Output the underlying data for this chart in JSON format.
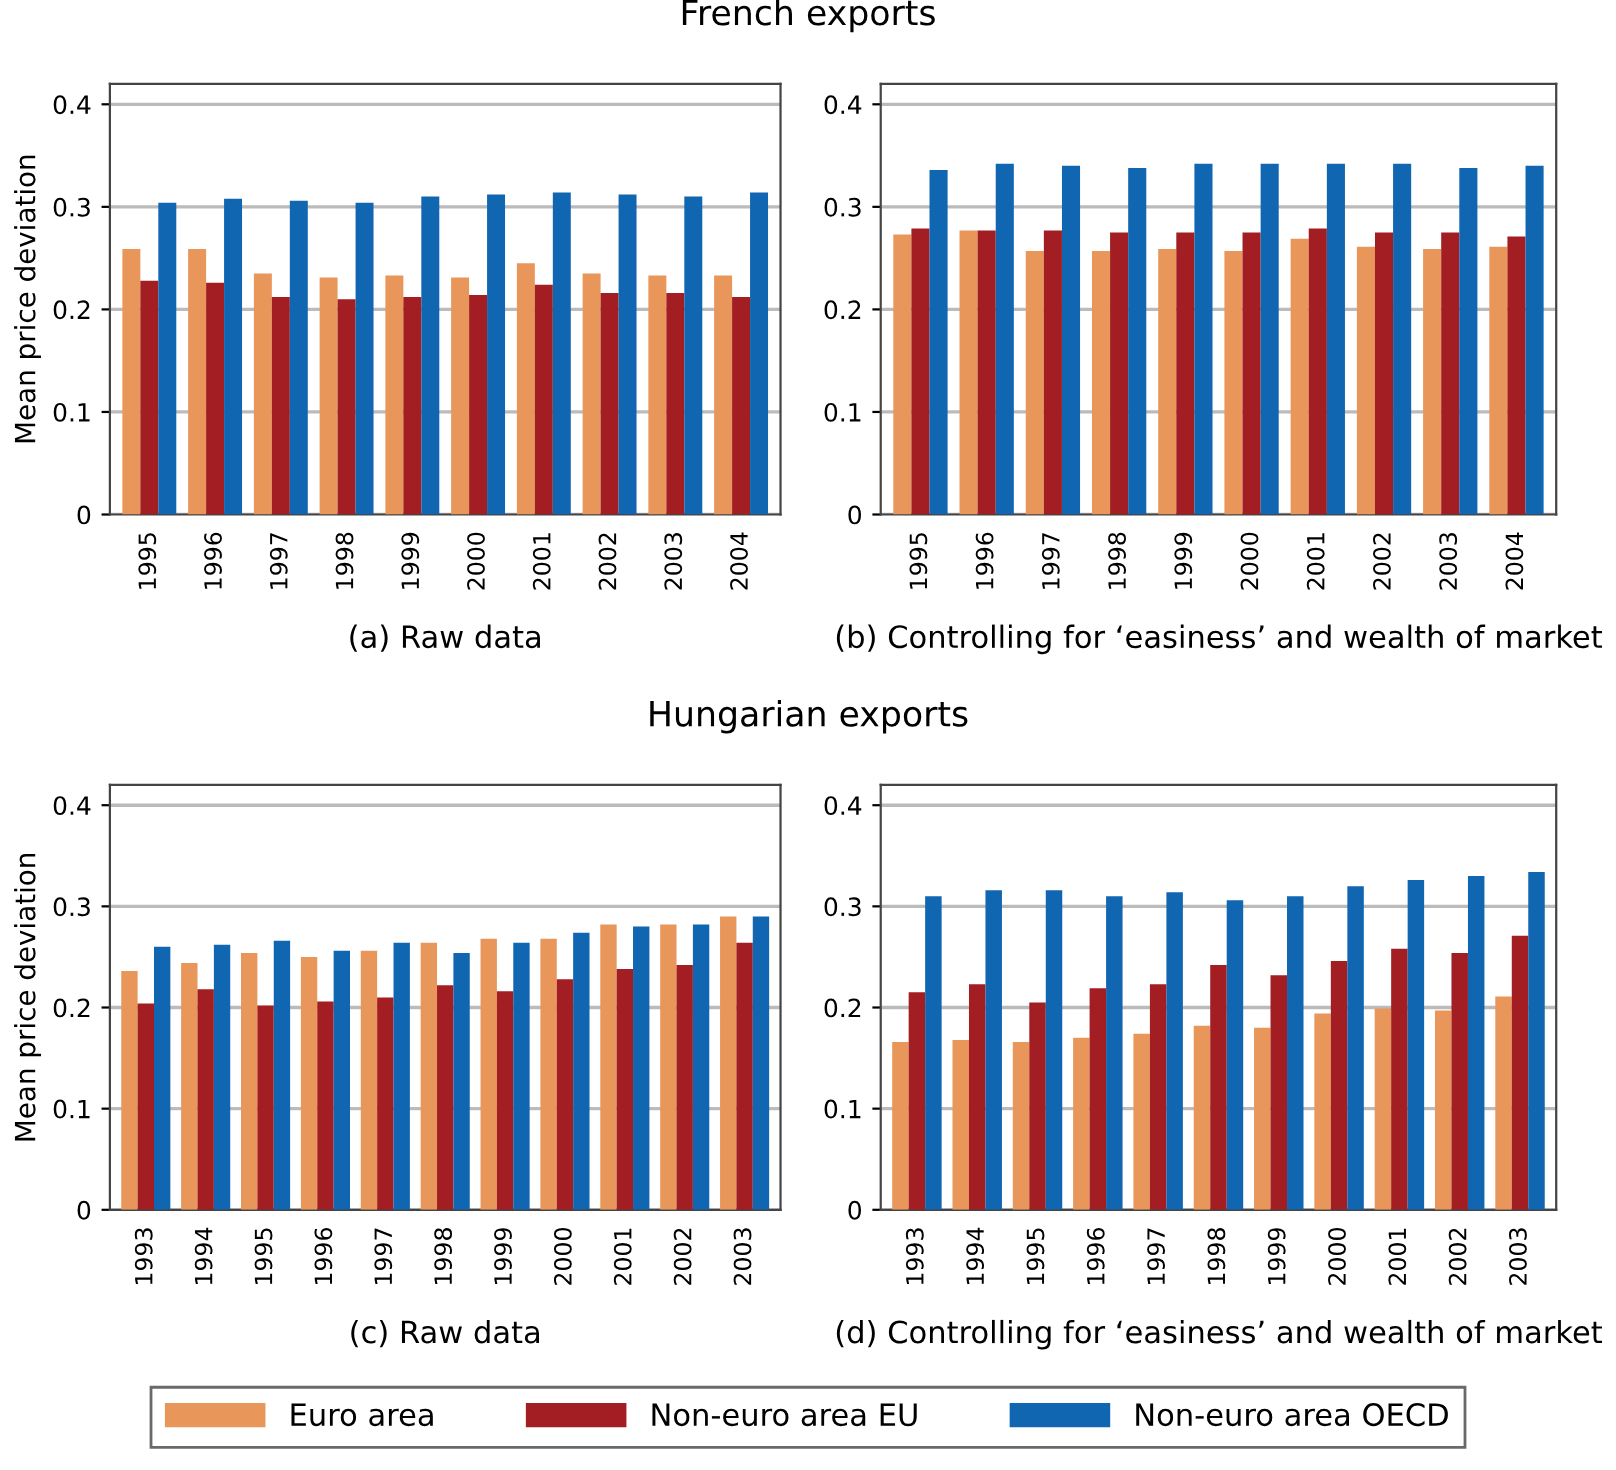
{
  "chart_data": [
    {
      "type": "bar",
      "title": "French exports",
      "xlabel": "(a) Raw data",
      "ylabel": "Mean price deviation",
      "categories": [
        "1995",
        "1996",
        "1997",
        "1998",
        "1999",
        "2000",
        "2001",
        "2002",
        "2003",
        "2004"
      ],
      "ylim": [
        0,
        0.42
      ],
      "yticks": [
        0,
        0.1,
        0.2,
        0.3,
        0.4
      ],
      "grid": "y",
      "legend": "bottom",
      "series": [
        {
          "name": "Euro area",
          "color": "#e8965a",
          "values": [
            0.259,
            0.259,
            0.235,
            0.231,
            0.233,
            0.231,
            0.245,
            0.235,
            0.233,
            0.233
          ]
        },
        {
          "name": "Non-euro area EU",
          "color": "#a31e22",
          "values": [
            0.228,
            0.226,
            0.212,
            0.21,
            0.212,
            0.214,
            0.224,
            0.216,
            0.216,
            0.212
          ]
        },
        {
          "name": "Non-euro area OECD",
          "color": "#1166b1",
          "values": [
            0.304,
            0.308,
            0.306,
            0.304,
            0.31,
            0.312,
            0.314,
            0.312,
            0.31,
            0.314
          ]
        }
      ]
    },
    {
      "type": "bar",
      "xlabel": "(b) Controlling for ‘easiness’ and wealth of market",
      "categories": [
        "1995",
        "1996",
        "1997",
        "1998",
        "1999",
        "2000",
        "2001",
        "2002",
        "2003",
        "2004"
      ],
      "ylim": [
        0,
        0.42
      ],
      "yticks": [
        0,
        0.1,
        0.2,
        0.3,
        0.4
      ],
      "grid": "y",
      "series": [
        {
          "name": "Euro area",
          "color": "#e8965a",
          "values": [
            0.273,
            0.277,
            0.257,
            0.257,
            0.259,
            0.257,
            0.269,
            0.261,
            0.259,
            0.261
          ]
        },
        {
          "name": "Non-euro area EU",
          "color": "#a31e22",
          "values": [
            0.279,
            0.277,
            0.277,
            0.275,
            0.275,
            0.275,
            0.279,
            0.275,
            0.275,
            0.271
          ]
        },
        {
          "name": "Non-euro area OECD",
          "color": "#1166b1",
          "values": [
            0.336,
            0.342,
            0.34,
            0.338,
            0.342,
            0.342,
            0.342,
            0.342,
            0.338,
            0.34
          ]
        }
      ]
    },
    {
      "type": "bar",
      "title": "Hungarian exports",
      "xlabel": "(c) Raw data",
      "ylabel": "Mean price deviation",
      "categories": [
        "1993",
        "1994",
        "1995",
        "1996",
        "1997",
        "1998",
        "1999",
        "2000",
        "2001",
        "2002",
        "2003"
      ],
      "ylim": [
        0,
        0.42
      ],
      "yticks": [
        0,
        0.1,
        0.2,
        0.3,
        0.4
      ],
      "grid": "y",
      "series": [
        {
          "name": "Euro area",
          "color": "#e8965a",
          "values": [
            0.236,
            0.244,
            0.254,
            0.25,
            0.256,
            0.264,
            0.268,
            0.268,
            0.282,
            0.282,
            0.29
          ]
        },
        {
          "name": "Non-euro area EU",
          "color": "#a31e22",
          "values": [
            0.204,
            0.218,
            0.202,
            0.206,
            0.21,
            0.222,
            0.216,
            0.228,
            0.238,
            0.242,
            0.264
          ]
        },
        {
          "name": "Non-euro area OECD",
          "color": "#1166b1",
          "values": [
            0.26,
            0.262,
            0.266,
            0.256,
            0.264,
            0.254,
            0.264,
            0.274,
            0.28,
            0.282,
            0.29
          ]
        }
      ]
    },
    {
      "type": "bar",
      "xlabel": "(d) Controlling for ‘easiness’ and wealth of market",
      "categories": [
        "1993",
        "1994",
        "1995",
        "1996",
        "1997",
        "1998",
        "1999",
        "2000",
        "2001",
        "2002",
        "2003"
      ],
      "ylim": [
        0,
        0.42
      ],
      "yticks": [
        0,
        0.1,
        0.2,
        0.3,
        0.4
      ],
      "grid": "y",
      "series": [
        {
          "name": "Euro area",
          "color": "#e8965a",
          "values": [
            0.166,
            0.168,
            0.166,
            0.17,
            0.174,
            0.182,
            0.18,
            0.194,
            0.199,
            0.197,
            0.211
          ]
        },
        {
          "name": "Non-euro area EU",
          "color": "#a31e22",
          "values": [
            0.215,
            0.223,
            0.205,
            0.219,
            0.223,
            0.242,
            0.232,
            0.246,
            0.258,
            0.254,
            0.271
          ]
        },
        {
          "name": "Non-euro area OECD",
          "color": "#1166b1",
          "values": [
            0.31,
            0.316,
            0.316,
            0.31,
            0.314,
            0.306,
            0.31,
            0.32,
            0.326,
            0.33,
            0.334
          ]
        }
      ]
    }
  ]
}
